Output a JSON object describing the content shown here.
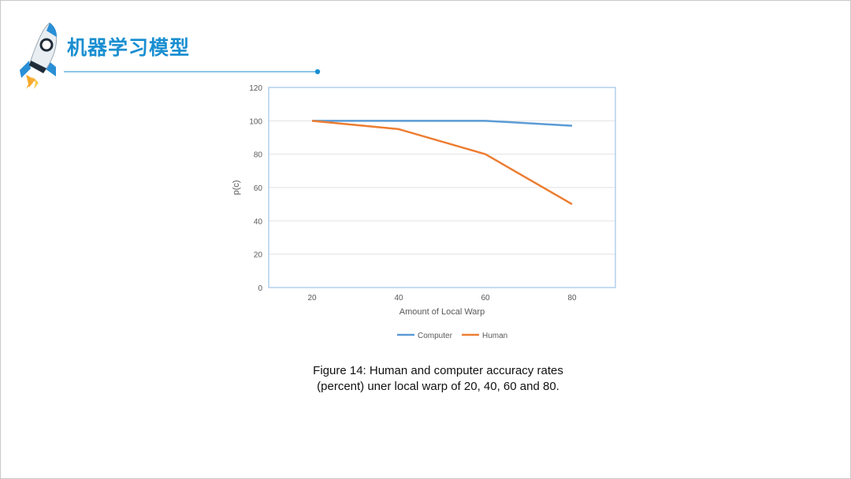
{
  "slide": {
    "title": "机器学习模型",
    "logo_icon": "rocket-icon",
    "accent_color": "#1a8fd1"
  },
  "chart_data": {
    "type": "line",
    "x": [
      20,
      40,
      60,
      80
    ],
    "series": [
      {
        "name": "Computer",
        "values": [
          100,
          100,
          100,
          97
        ],
        "color": "#5b9bd5"
      },
      {
        "name": "Human",
        "values": [
          100,
          95,
          80,
          50
        ],
        "color": "#ed7d31"
      }
    ],
    "title": "",
    "xlabel": "Amount of Local Warp",
    "ylabel": "p(c)",
    "xlim": [
      20,
      80
    ],
    "ylim": [
      0,
      120
    ],
    "yticks": [
      0,
      20,
      40,
      60,
      80,
      100,
      120
    ],
    "grid": true,
    "legend": "bottom"
  },
  "caption": {
    "line1": "Figure 14: Human and computer accuracy rates",
    "line2": "(percent) uner local warp of 20, 40, 60 and 80."
  }
}
